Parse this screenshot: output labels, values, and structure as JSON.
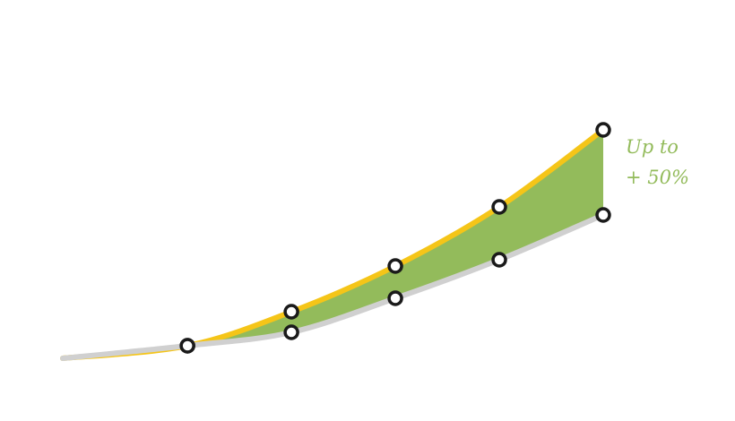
{
  "chart_data": {
    "type": "line",
    "x": [
      0,
      1.2,
      2.2,
      3.2,
      4.2,
      5.2
    ],
    "series": [
      {
        "color": "#f5c518",
        "values": [
          0,
          14,
          52,
          103,
          169,
          255
        ]
      },
      {
        "color": "#d0d0d0",
        "values": [
          0,
          14,
          29,
          67,
          110,
          160
        ]
      }
    ],
    "fill_between": "#93bb5b",
    "xlim": [
      0,
      5.2
    ],
    "ylim": [
      0,
      300
    ],
    "annotation": [
      "Up to",
      "+ 50%"
    ],
    "annotation_color": "#93bb5b"
  }
}
